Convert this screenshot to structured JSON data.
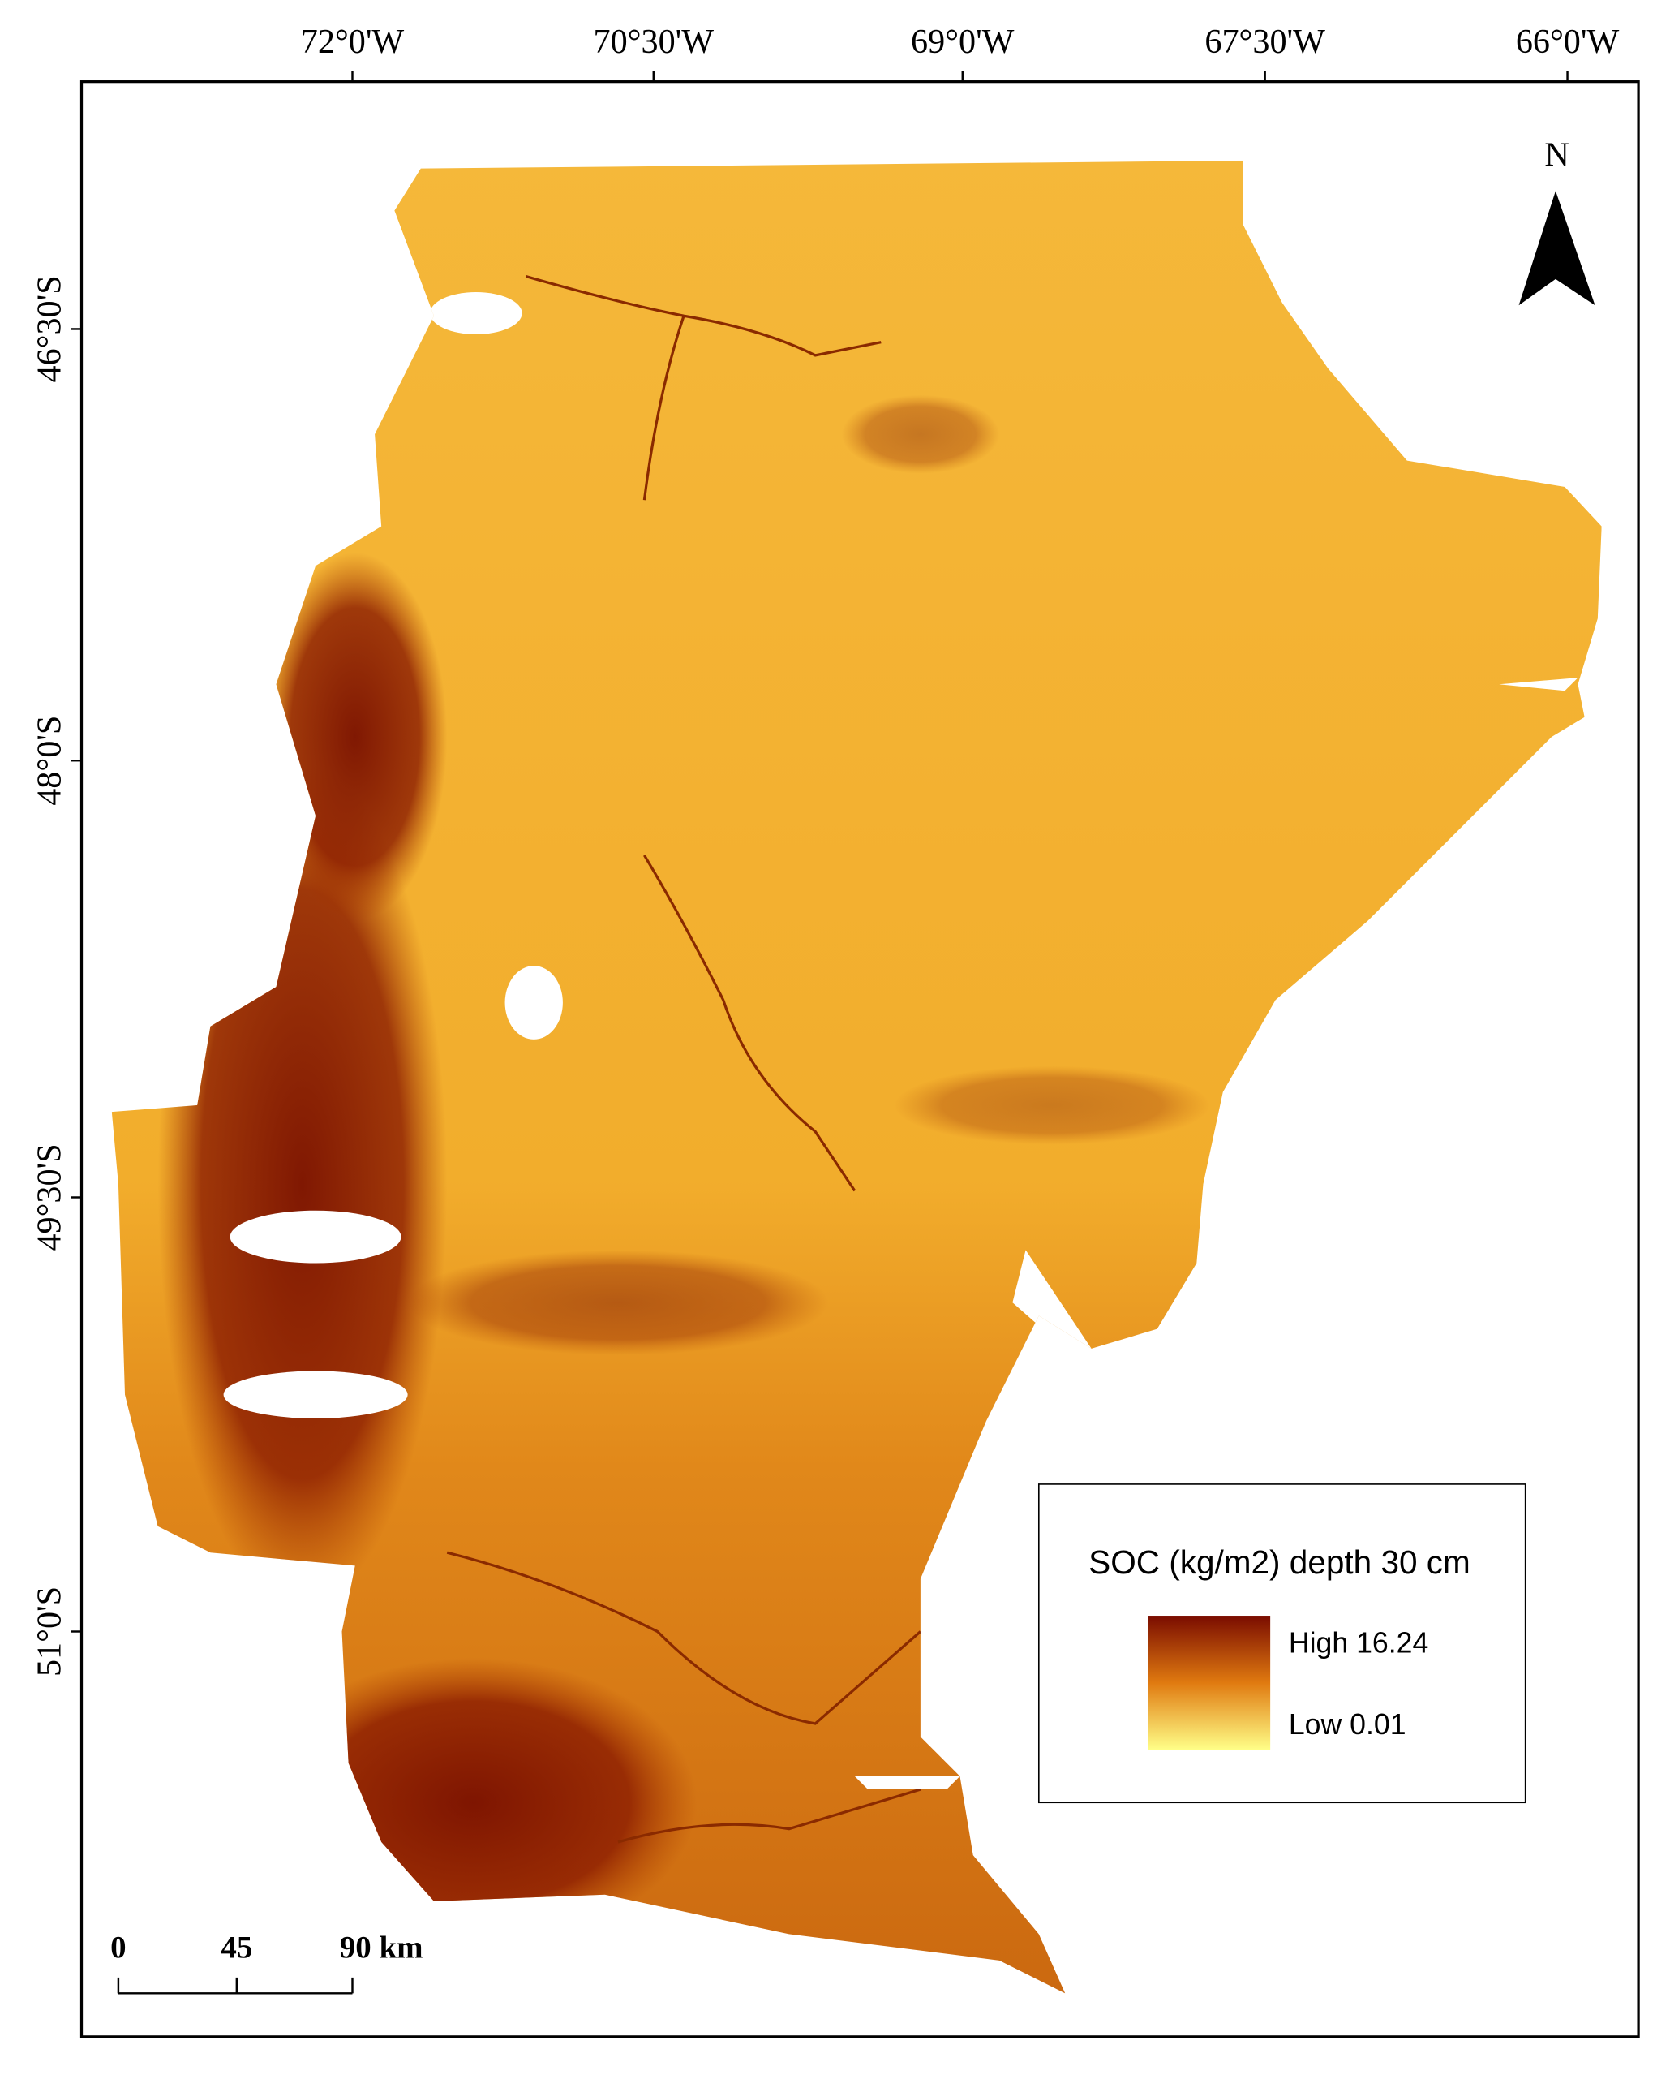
{
  "map": {
    "north_label": "N",
    "x_labels": [
      "72°0'W",
      "70°30'W",
      "69°0'W",
      "67°30'W",
      "66°0'W"
    ],
    "y_labels": [
      "46°30'S",
      "48°0'S",
      "49°30'S",
      "51°0'S"
    ],
    "legend": {
      "title": "SOC (kg/m2) depth 30 cm",
      "high": "High 16.24",
      "low": "Low 0.01"
    },
    "scale_bar": {
      "labels": [
        "0",
        "45",
        "90 km"
      ]
    }
  }
}
